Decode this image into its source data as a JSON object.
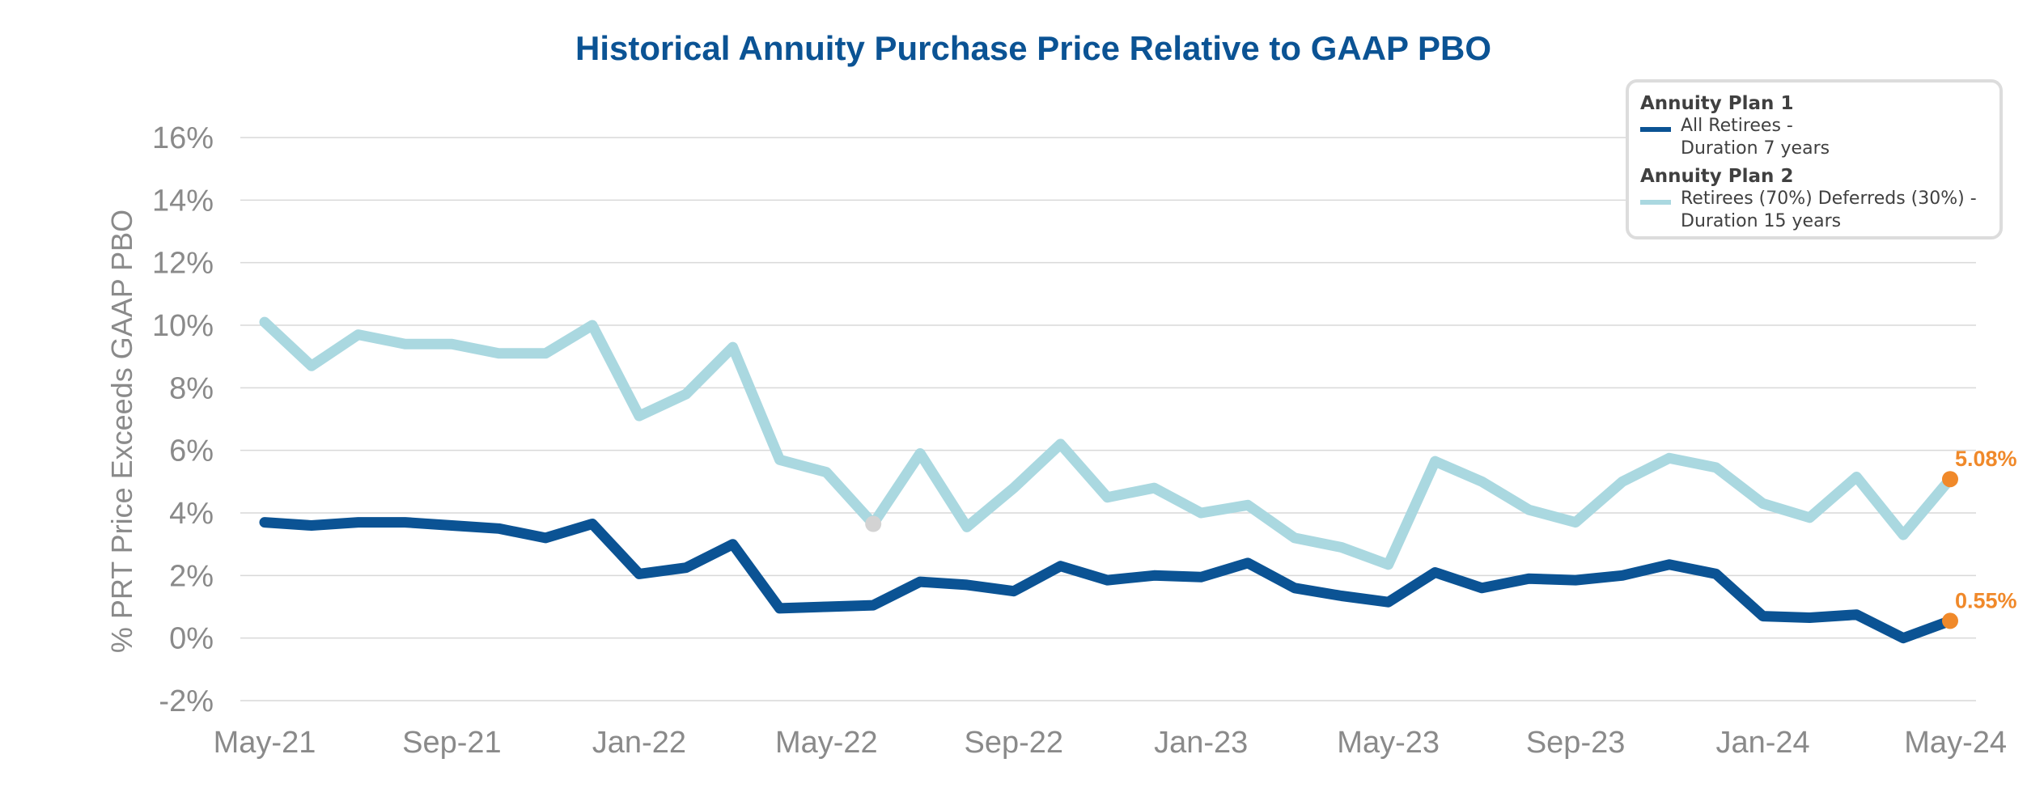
{
  "chart_data": {
    "type": "line",
    "title": "Historical Annuity Purchase Price Relative to GAAP PBO",
    "ylabel": "% PRT Price Exceeds GAAP PBO",
    "xlabel": "",
    "ylim": [
      -2,
      16
    ],
    "yticks": [
      -2,
      0,
      2,
      4,
      6,
      8,
      10,
      12,
      14,
      16
    ],
    "ytick_labels": [
      "-2%",
      "0%",
      "2%",
      "4%",
      "6%",
      "8%",
      "10%",
      "12%",
      "14%",
      "16%"
    ],
    "x": [
      "May-21",
      "Jun-21",
      "Jul-21",
      "Aug-21",
      "Sep-21",
      "Oct-21",
      "Nov-21",
      "Dec-21",
      "Jan-22",
      "Feb-22",
      "Mar-22",
      "Apr-22",
      "May-22",
      "Jun-22",
      "Jul-22",
      "Aug-22",
      "Sep-22",
      "Oct-22",
      "Nov-22",
      "Dec-22",
      "Jan-23",
      "Feb-23",
      "Mar-23",
      "Apr-23",
      "May-23",
      "Jun-23",
      "Jul-23",
      "Aug-23",
      "Sep-23",
      "Oct-23",
      "Nov-23",
      "Dec-23",
      "Jan-24",
      "Feb-24",
      "Mar-24",
      "Apr-24",
      "May-24"
    ],
    "xtick_labels": [
      "May-21",
      "Sep-21",
      "Jan-22",
      "May-22",
      "Sep-22",
      "Jan-23",
      "May-23",
      "Sep-23",
      "Jan-24",
      "May-24"
    ],
    "grid": true,
    "legend_position": "top-right",
    "series": [
      {
        "group": "Annuity Plan 1",
        "name": "All Retirees - Duration 7 years",
        "name_lines": [
          "All Retirees -",
          "Duration 7 years"
        ],
        "color": "#0b5394",
        "values": [
          3.7,
          3.6,
          3.7,
          3.7,
          3.6,
          3.5,
          3.2,
          3.65,
          2.05,
          2.25,
          3.0,
          0.95,
          1.0,
          1.05,
          1.8,
          1.7,
          1.5,
          2.3,
          1.85,
          2.0,
          1.95,
          2.4,
          1.6,
          1.35,
          1.15,
          2.1,
          1.6,
          1.9,
          1.85,
          2.0,
          2.35,
          2.05,
          0.7,
          0.65,
          0.75,
          0.0,
          0.55
        ],
        "end_label": "0.55%"
      },
      {
        "group": "Annuity Plan 2",
        "name": "Retirees (70%) Deferreds (30%) - Duration 15 years",
        "name_lines": [
          "Retirees (70%) Deferreds (30%) -",
          "Duration 15 years"
        ],
        "color": "#aad8e0",
        "values": [
          10.1,
          8.7,
          9.7,
          9.4,
          9.4,
          9.1,
          9.1,
          10.0,
          7.1,
          7.8,
          9.3,
          5.7,
          5.3,
          3.65,
          5.9,
          3.55,
          4.8,
          6.2,
          4.5,
          4.8,
          4.0,
          4.25,
          3.2,
          2.9,
          2.35,
          5.65,
          5.0,
          4.1,
          3.7,
          5.0,
          5.75,
          5.45,
          4.3,
          3.85,
          5.15,
          3.3,
          5.08
        ],
        "end_label": "5.08%"
      }
    ],
    "highlight_point": {
      "series": 1,
      "x": "Jun-22",
      "color": "#d3d3d3"
    },
    "end_marker_color": "#f0892a"
  }
}
